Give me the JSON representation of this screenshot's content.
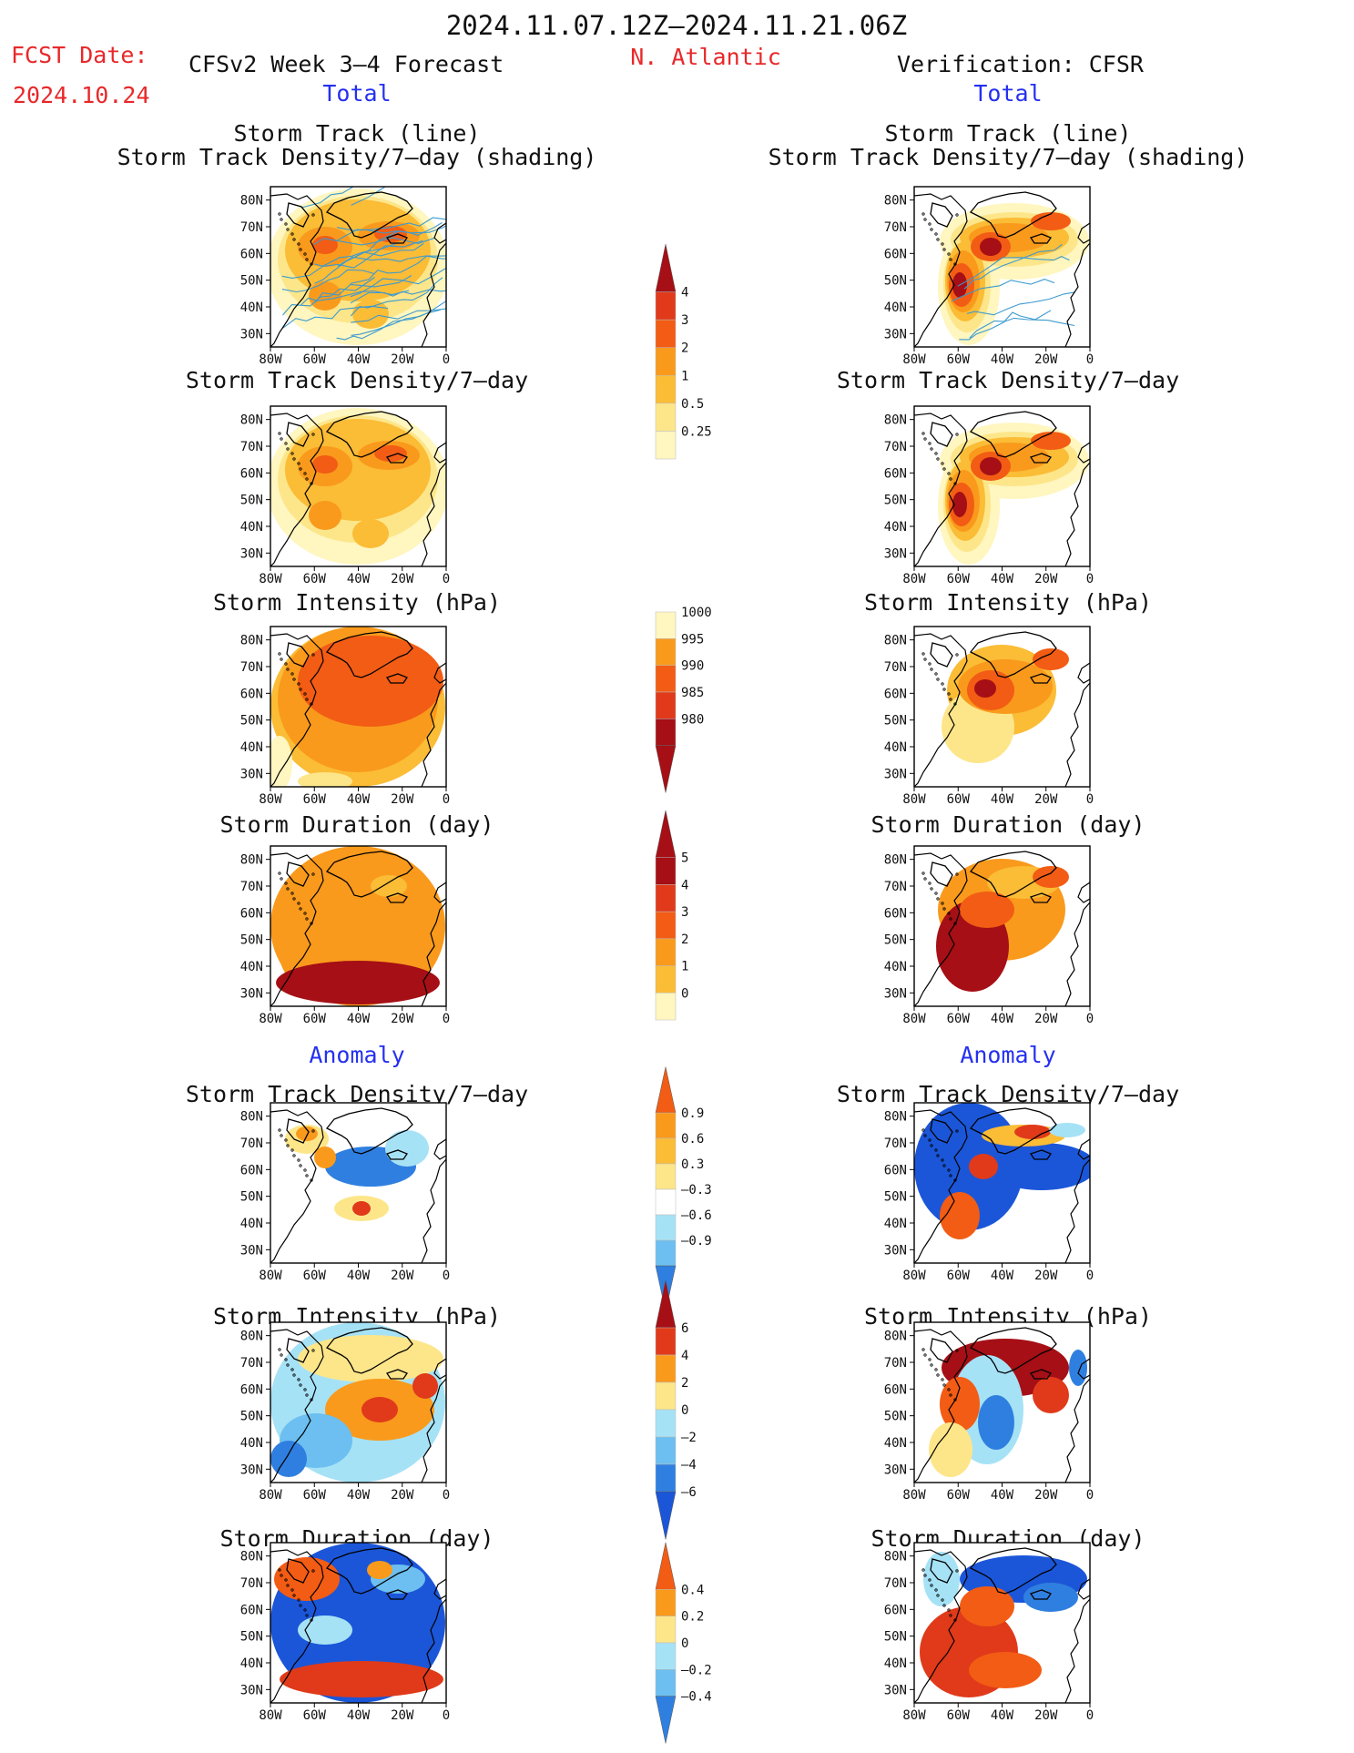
{
  "header": {
    "period": "2024.11.07.12Z–2024.11.21.06Z",
    "fcst_label": "FCST Date:",
    "fcst_date": "2024.10.24",
    "forecast_model": "CFSv2  Week 3–4 Forecast",
    "region": "N. Atlantic",
    "verification": "Verification: CFSR"
  },
  "sections": {
    "total_left": "Total",
    "total_right": "Total",
    "anomaly_left": "Anomaly",
    "anomaly_right": "Anomaly"
  },
  "panel_titles": {
    "storm_track_line": "Storm Track (line)",
    "storm_track_shading": "Storm Track Density/7–day (shading)",
    "density": "Storm Track Density/7–day",
    "intensity": "Storm Intensity (hPa)",
    "duration": "Storm Duration (day)"
  },
  "axes": {
    "lat_ticks": [
      "80N",
      "70N",
      "60N",
      "50N",
      "40N",
      "30N"
    ],
    "lon_ticks": [
      "80W",
      "60W",
      "40W",
      "20W",
      "0"
    ]
  },
  "colorbars": {
    "density_total": [
      "4",
      "3",
      "2",
      "1",
      "0.5",
      "0.25"
    ],
    "intensity_total": [
      "1000",
      "995",
      "990",
      "985",
      "980"
    ],
    "duration_total": [
      "5",
      "4",
      "3",
      "2",
      "1",
      "0"
    ],
    "density_anomaly": [
      "0.9",
      "0.6",
      "0.3",
      "–0.3",
      "–0.6",
      "–0.9"
    ],
    "intensity_anomaly": [
      "6",
      "4",
      "2",
      "0",
      "–2",
      "–4",
      "–6"
    ],
    "duration_anomaly": [
      "0.4",
      "0.2",
      "0",
      "–0.2",
      "–0.4"
    ]
  },
  "palette": {
    "dark_red": "#a50f15",
    "red": "#e03a1a",
    "orange_red": "#f25c14",
    "orange": "#f99a1c",
    "gold": "#fbbc36",
    "yellow": "#fde68a",
    "pale_yellow": "#fff6c0",
    "light_blue": "#a6e2f6",
    "sky_blue": "#6cbff0",
    "blue": "#2f7fe0",
    "deep_blue": "#1b56d8",
    "track_line": "#3c9ad0"
  }
}
